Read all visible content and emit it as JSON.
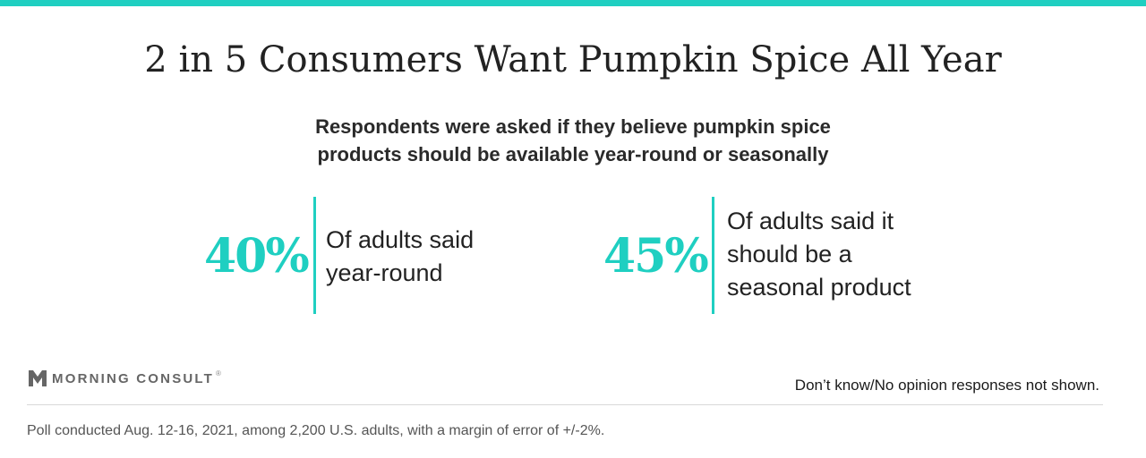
{
  "header": {
    "title": "2 in 5 Consumers Want Pumpkin Spice All Year",
    "subtitle_lines": [
      "Respondents were asked if they believe pumpkin spice",
      "products should be available year-round or seasonally"
    ]
  },
  "chart_data": {
    "type": "table",
    "title": "2 in 5 Consumers Want Pumpkin Spice All Year",
    "stats": [
      {
        "value": 40,
        "value_label": "40%",
        "description_lines": [
          "Of adults said",
          "year-round"
        ]
      },
      {
        "value": 45,
        "value_label": "45%",
        "description_lines": [
          "Of adults said it",
          "should be a",
          "seasonal product"
        ]
      }
    ]
  },
  "footer": {
    "brand": "MORNING CONSULT",
    "brand_mark": "®",
    "note": "Don’t know/No opinion responses not shown.",
    "source": "Poll conducted Aug. 12-16, 2021, among 2,200 U.S. adults, with a margin of error of +/-2%."
  },
  "colors": {
    "accent": "#1fcfc1",
    "text": "#222222",
    "muted": "#555555",
    "logo": "#666666"
  },
  "icons": {
    "logo": "morning-consult-m-icon"
  }
}
